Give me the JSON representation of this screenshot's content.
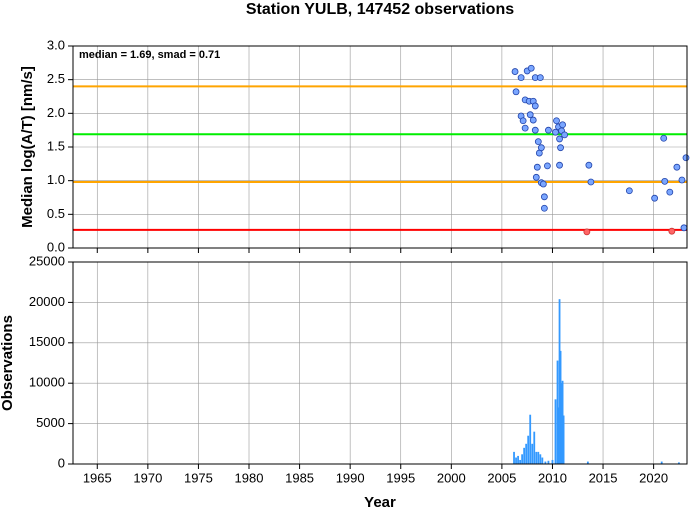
{
  "chart_data": [
    {
      "type": "scatter",
      "title": "Station YULB, 147452 observations",
      "ylabel": "Median log(A/T) [nm/s]",
      "annotation": "median = 1.69, smad = 0.71",
      "xlim": [
        1962.6,
        2023.3
      ],
      "xticks": [
        1965,
        1970,
        1975,
        1980,
        1985,
        1990,
        1995,
        2000,
        2005,
        2010,
        2015,
        2020
      ],
      "ylim": [
        0,
        3
      ],
      "yticks": [
        {
          "value": 0,
          "label": "0.0"
        },
        {
          "value": 0.5,
          "label": "0.5"
        },
        {
          "value": 1,
          "label": "1.0"
        },
        {
          "value": 1.5,
          "label": "1.5"
        },
        {
          "value": 2,
          "label": "2.0"
        },
        {
          "value": 2.5,
          "label": "2.5"
        },
        {
          "value": 3,
          "label": "3.0"
        }
      ],
      "grid": true,
      "hlines": [
        {
          "value": 2.4,
          "color": "#ffa500"
        },
        {
          "value": 1.69,
          "color": "#00ee00"
        },
        {
          "value": 0.98,
          "color": "#ffa500"
        },
        {
          "value": 0.27,
          "color": "#ff0000"
        }
      ],
      "series": [
        {
          "color": "#7aa6ff",
          "x": [
            2006.3,
            2006.9,
            2006.4,
            2007.5,
            2007.9,
            2008.3,
            2008.8,
            2007.3,
            2007.7,
            2008.1,
            2006.9,
            2007.1,
            2007.3,
            2007.8,
            2008.1,
            2008.3,
            2008.3,
            2008.6,
            2008.7,
            2008.9,
            2008.5,
            2008.4,
            2008.9,
            2009.1,
            2009.2,
            2009.2,
            2009.5,
            2009.6,
            2010.3,
            2010.4,
            2010.6,
            2010.7,
            2010.8,
            2010.9,
            2011.0,
            2011.2,
            2010.7,
            2013.6,
            2013.8,
            2017.6,
            2020.1,
            2021.0,
            2021.1,
            2021.6,
            2022.3,
            2022.8,
            2023.0,
            2023.2
          ],
          "values": [
            2.62,
            2.53,
            2.32,
            2.63,
            2.67,
            2.53,
            2.53,
            2.2,
            2.18,
            2.18,
            1.96,
            1.89,
            1.78,
            1.98,
            1.9,
            2.11,
            1.75,
            1.58,
            1.41,
            1.49,
            1.2,
            1.05,
            0.97,
            0.95,
            0.76,
            0.59,
            1.22,
            1.75,
            1.72,
            1.89,
            1.8,
            1.62,
            1.49,
            1.74,
            1.83,
            1.68,
            1.23,
            1.23,
            0.98,
            0.85,
            0.74,
            1.63,
            0.99,
            0.83,
            1.2,
            1.01,
            0.3,
            1.34
          ]
        },
        {
          "color": "#ff6666",
          "x": [
            2013.4,
            2021.8
          ],
          "values": [
            0.24,
            0.25
          ]
        }
      ]
    },
    {
      "type": "bar",
      "ylabel": "Observations",
      "xlabel": "Year",
      "color": "#3399ff",
      "xlim": [
        1962.6,
        2023.3
      ],
      "xticks": [
        1965,
        1970,
        1975,
        1980,
        1985,
        1990,
        1995,
        2000,
        2005,
        2010,
        2015,
        2020
      ],
      "ylim": [
        0,
        25000
      ],
      "yticks": [
        0,
        5000,
        10000,
        15000,
        20000,
        25000
      ],
      "grid": true,
      "x": [
        2006.2,
        2006.4,
        2006.6,
        2006.8,
        2007.0,
        2007.2,
        2007.4,
        2007.6,
        2007.8,
        2008.0,
        2008.2,
        2008.4,
        2008.6,
        2008.8,
        2009.0,
        2009.3,
        2009.6,
        2010.0,
        2010.3,
        2010.5,
        2010.6,
        2010.7,
        2010.8,
        2010.9,
        2011.0,
        2011.1,
        2013.5,
        2020.8,
        2022.5
      ],
      "values": [
        1500,
        800,
        1000,
        500,
        1200,
        2000,
        2500,
        3500,
        6100,
        2500,
        4000,
        1500,
        1500,
        1200,
        800,
        300,
        400,
        500,
        8000,
        12800,
        7000,
        20400,
        14000,
        10000,
        10300,
        6000,
        300,
        300,
        200
      ]
    }
  ]
}
